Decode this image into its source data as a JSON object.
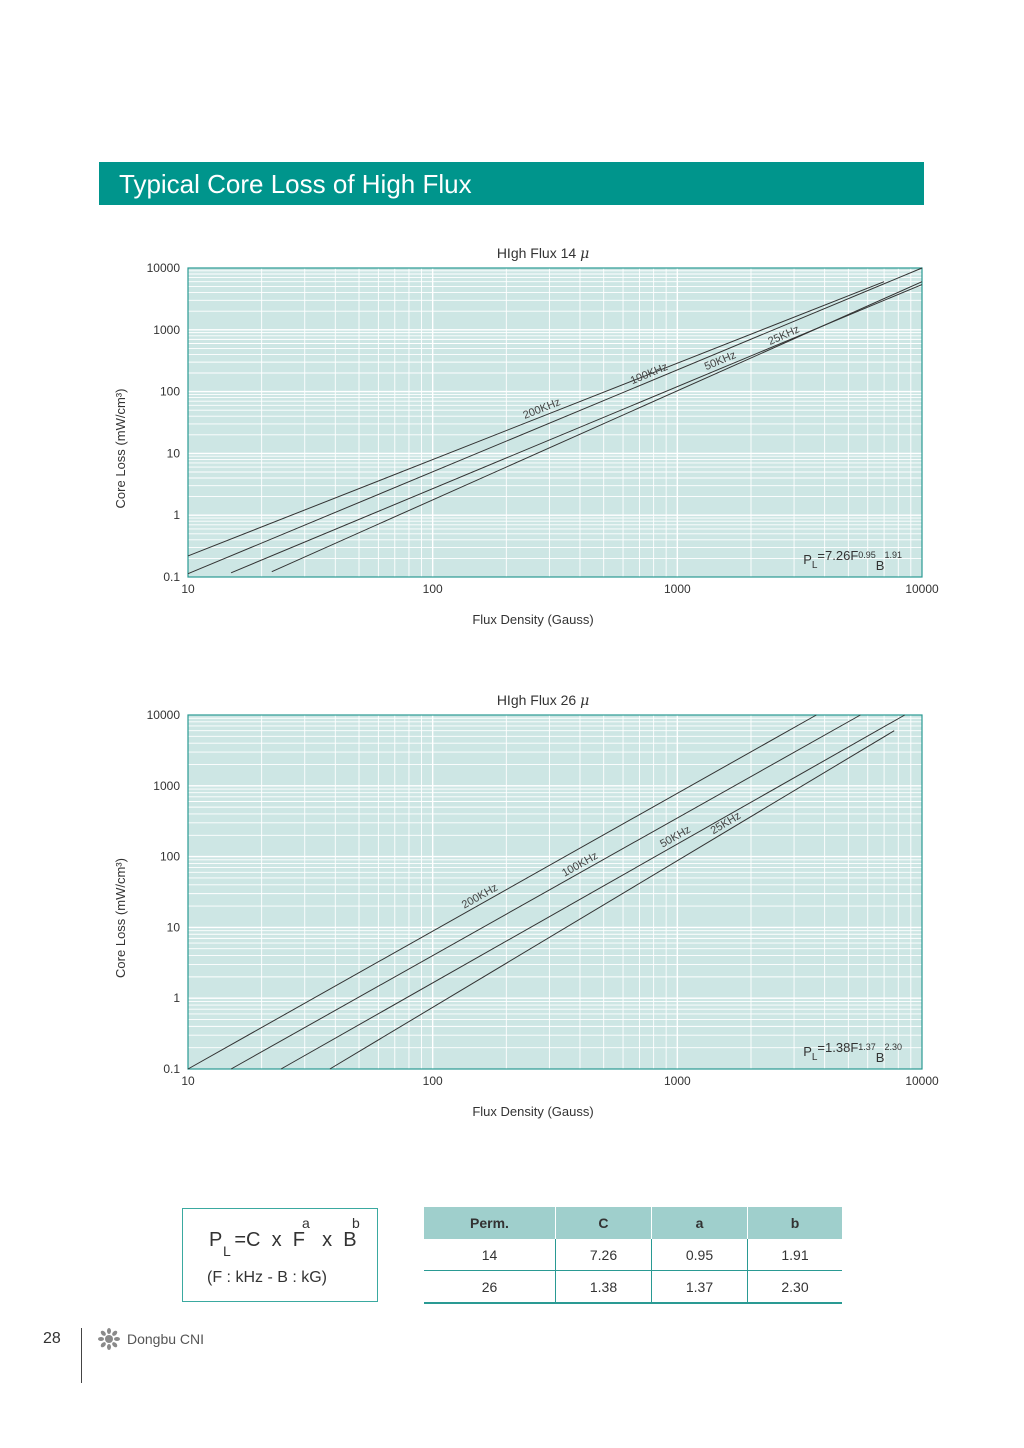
{
  "page": {
    "title": "Typical Core Loss of High Flux",
    "page_number": "28",
    "brand": "Dongbu CNI",
    "logo_icon": "sunflower-logo-icon",
    "accent_color": "#00958c",
    "plot_background": "#cde6e4"
  },
  "chart_data": [
    {
      "type": "line",
      "title": "HIgh Flux 14",
      "title_symbol": "μ",
      "xlabel": "Flux Density (Gauss)",
      "ylabel": "Core Loss (mW/cm³)",
      "x_scale": "log",
      "y_scale": "log",
      "xlim": [
        10,
        10000
      ],
      "ylim": [
        0.1,
        10000
      ],
      "x_ticks": [
        "10",
        "100",
        "1000",
        "10000"
      ],
      "y_ticks": [
        "0.1",
        "1",
        "10",
        "100",
        "1000",
        "10000"
      ],
      "grid": true,
      "annotation": {
        "prefix": "P",
        "sub": "L",
        "mid": "=7.26F",
        "sup1": "0.95",
        "mid2": "B",
        "sup2": "1.91"
      },
      "series": [
        {
          "name": "200KHz",
          "x": [
            10,
            7000
          ],
          "y": [
            0.219,
            6000
          ]
        },
        {
          "name": "100KHz",
          "x": [
            10,
            10000
          ],
          "y": [
            0.113,
            10000
          ]
        },
        {
          "name": "50KHz",
          "x": [
            15,
            10000
          ],
          "y": [
            0.117,
            5400
          ]
        },
        {
          "name": "25KHz",
          "x": [
            22,
            10000
          ],
          "y": [
            0.122,
            6000
          ]
        }
      ]
    },
    {
      "type": "line",
      "title": "HIgh Flux 26",
      "title_symbol": "μ",
      "xlabel": "Flux Density (Gauss)",
      "ylabel": "Core Loss (mW/cm³)",
      "x_scale": "log",
      "y_scale": "log",
      "xlim": [
        10,
        10000
      ],
      "ylim": [
        0.1,
        10000
      ],
      "x_ticks": [
        "10",
        "100",
        "1000",
        "10000"
      ],
      "y_ticks": [
        "0.1",
        "1",
        "10",
        "100",
        "1000",
        "10000"
      ],
      "grid": true,
      "annotation": {
        "prefix": "P",
        "sub": "L",
        "mid": "=1.38F",
        "sup1": "1.37",
        "mid2": "B",
        "sup2": "2.30"
      },
      "series": [
        {
          "name": "200KHz",
          "x": [
            10,
            3700
          ],
          "y": [
            0.1,
            10000
          ]
        },
        {
          "name": "100KHz",
          "x": [
            15,
            5600
          ],
          "y": [
            0.1,
            10000
          ]
        },
        {
          "name": "50KHz",
          "x": [
            24,
            8500
          ],
          "y": [
            0.1,
            10000
          ]
        },
        {
          "name": "25KHz",
          "x": [
            38,
            7700
          ],
          "y": [
            0.1,
            6000
          ]
        }
      ]
    }
  ],
  "formula": {
    "p": "P",
    "sub_l": "L",
    "eq": "=C",
    "x1": "x",
    "f": "F",
    "sup_a": "a",
    "x2": "x",
    "b": "B",
    "sup_b": "b",
    "units": "(F : kHz - B : kG)"
  },
  "table": {
    "headers": [
      "Perm.",
      "C",
      "a",
      "b"
    ],
    "rows": [
      [
        "14",
        "7.26",
        "0.95",
        "1.91"
      ],
      [
        "26",
        "1.38",
        "1.37",
        "2.30"
      ]
    ]
  }
}
